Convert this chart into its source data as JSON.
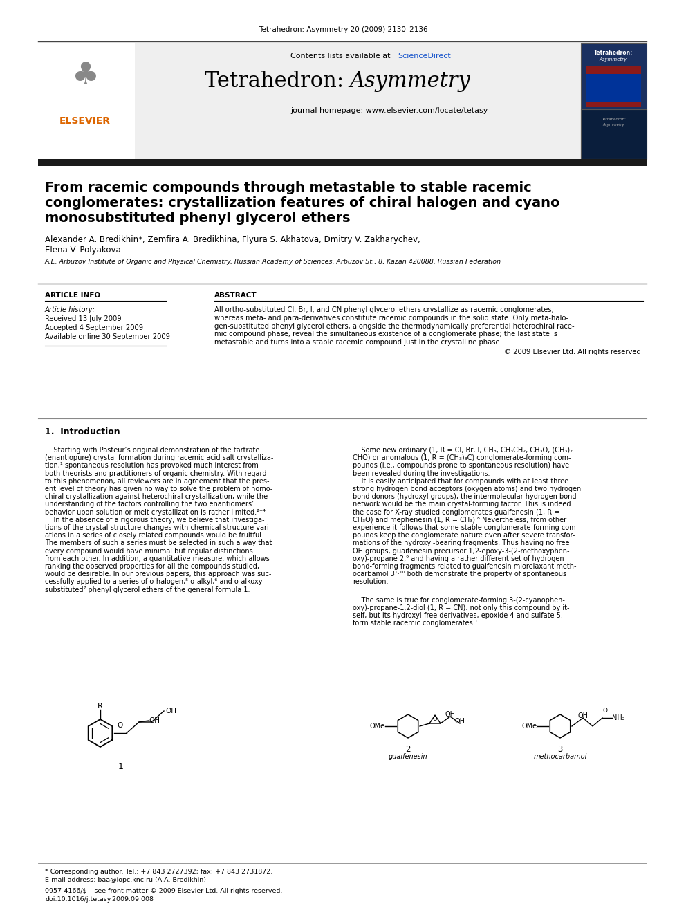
{
  "journal_ref": "Tetrahedron: Asymmetry 20 (2009) 2130–2136",
  "contents_text": "Contents lists available at ",
  "sciencedirect_text": "ScienceDirect",
  "journal_name": "Tetrahedron: ",
  "journal_name_italic": "Asymmetry",
  "journal_homepage": "journal homepage: www.elsevier.com/locate/tetasy",
  "paper_title_line1": "From racemic compounds through metastable to stable racemic",
  "paper_title_line2": "conglomerates: crystallization features of chiral halogen and cyano",
  "paper_title_line3": "monosubstituted phenyl glycerol ethers",
  "authors_line1": "Alexander A. Bredikhin*, Zemfira A. Bredikhina, Flyura S. Akhatova, Dmitry V. Zakharychev,",
  "authors_line2": "Elena V. Polyakova",
  "affiliation": "A.E. Arbuzov Institute of Organic and Physical Chemistry, Russian Academy of Sciences, Arbuzov St., 8, Kazan 420088, Russian Federation",
  "article_info_header": "ARTICLE INFO",
  "abstract_header": "ABSTRACT",
  "article_history_label": "Article history:",
  "received": "Received 13 July 2009",
  "accepted": "Accepted 4 September 2009",
  "available": "Available online 30 September 2009",
  "abstract_line1": "All ortho-substituted Cl, Br, I, and CN phenyl glycerol ethers crystallize as racemic conglomerates,",
  "abstract_line2": "whereas meta- and para-derivatives constitute racemic compounds in the solid state. Only meta-halo-",
  "abstract_line3": "gen-substituted phenyl glycerol ethers, alongside the thermodynamically preferential heterochiral race-",
  "abstract_line4": "mic compound phase, reveal the simultaneous existence of a conglomerate phase; the last state is",
  "abstract_line5": "metastable and turns into a stable racemic compound just in the crystalline phase.",
  "copyright": "© 2009 Elsevier Ltd. All rights reserved.",
  "intro_header": "1.  Introduction",
  "col1_lines": [
    "    Starting with Pasteur’s original demonstration of the tartrate",
    "(enantiopure) crystal formation during racemic acid salt crystalliza-",
    "tion,¹ spontaneous resolution has provoked much interest from",
    "both theorists and practitioners of organic chemistry. With regard",
    "to this phenomenon, all reviewers are in agreement that the pres-",
    "ent level of theory has given no way to solve the problem of homo-",
    "chiral crystallization against heterochiral crystallization, while the",
    "understanding of the factors controlling the two enantiomers’",
    "behavior upon solution or melt crystallization is rather limited.²⁻⁴",
    "    In the absence of a rigorous theory, we believe that investiga-",
    "tions of the crystal structure changes with chemical structure vari-",
    "ations in a series of closely related compounds would be fruitful.",
    "The members of such a series must be selected in such a way that",
    "every compound would have minimal but regular distinctions",
    "from each other. In addition, a quantitative measure, which allows",
    "ranking the observed properties for all the compounds studied,",
    "would be desirable. In our previous papers, this approach was suc-",
    "cessfully applied to a series of o-halogen,⁵ o-alkyl,⁶ and o-alkoxy-",
    "substituted⁷ phenyl glycerol ethers of the general formula 1."
  ],
  "col2_lines": [
    "    Some new ordinary (1, R = Cl, Br, I, CH₃, CH₃CH₂, CH₃O, (CH₃)₂",
    "CHO) or anomalous (1, R = (CH₃)₃C) conglomerate-forming com-",
    "pounds (i.e., compounds prone to spontaneous resolution) have",
    "been revealed during the investigations.",
    "    It is easily anticipated that for compounds with at least three",
    "strong hydrogen bond acceptors (oxygen atoms) and two hydrogen",
    "bond donors (hydroxyl groups), the intermolecular hydrogen bond",
    "network would be the main crystal-forming factor. This is indeed",
    "the case for X-ray studied conglomerates guaifenesin (1, R =",
    "CH₃O) and mephenesin (1, R = CH₃).⁸ Nevertheless, from other",
    "experience it follows that some stable conglomerate-forming com-",
    "pounds keep the conglomerate nature even after severe transfor-",
    "mations of the hydroxyl-bearing fragments. Thus having no free",
    "OH groups, guaifenesin precursor 1,2-epoxy-3-(2-methoxyphen-",
    "oxy)-propane 2,⁹ and having a rather different set of hydrogen",
    "bond-forming fragments related to guaifenesin miorelaxant meth-",
    "ocarbamol 3¹·¹⁰ both demonstrate the property of spontaneous",
    "resolution."
  ],
  "col2b_lines": [
    "    The same is true for conglomerate-forming 3-(2-cyanophen-",
    "oxy)-propane-1,2-diol (1, R = CN): not only this compound by it-",
    "self, but its hydroxyl-free derivatives, epoxide 4 and sulfate 5,",
    "form stable racemic conglomerates.¹¹"
  ],
  "guaifenesin_label": "guaifenesin",
  "methocarbamol_label": "methocarbamol",
  "footer_text1": "* Corresponding author. Tel.: +7 843 2727392; fax: +7 843 2731872.",
  "footer_text2": "E-mail address: baa@iopc.knc.ru (A.A. Bredikhin).",
  "footer_text3": "0957-4166/$ – see front matter © 2009 Elsevier Ltd. All rights reserved.",
  "footer_text4": "doi:10.1016/j.tetasy.2009.09.008",
  "bg_header": "#efefef",
  "bg_white": "#ffffff",
  "color_black": "#000000",
  "color_blue": "#1a56cc",
  "color_orange": "#dd6600",
  "thick_bar_color": "#1a1a1a"
}
